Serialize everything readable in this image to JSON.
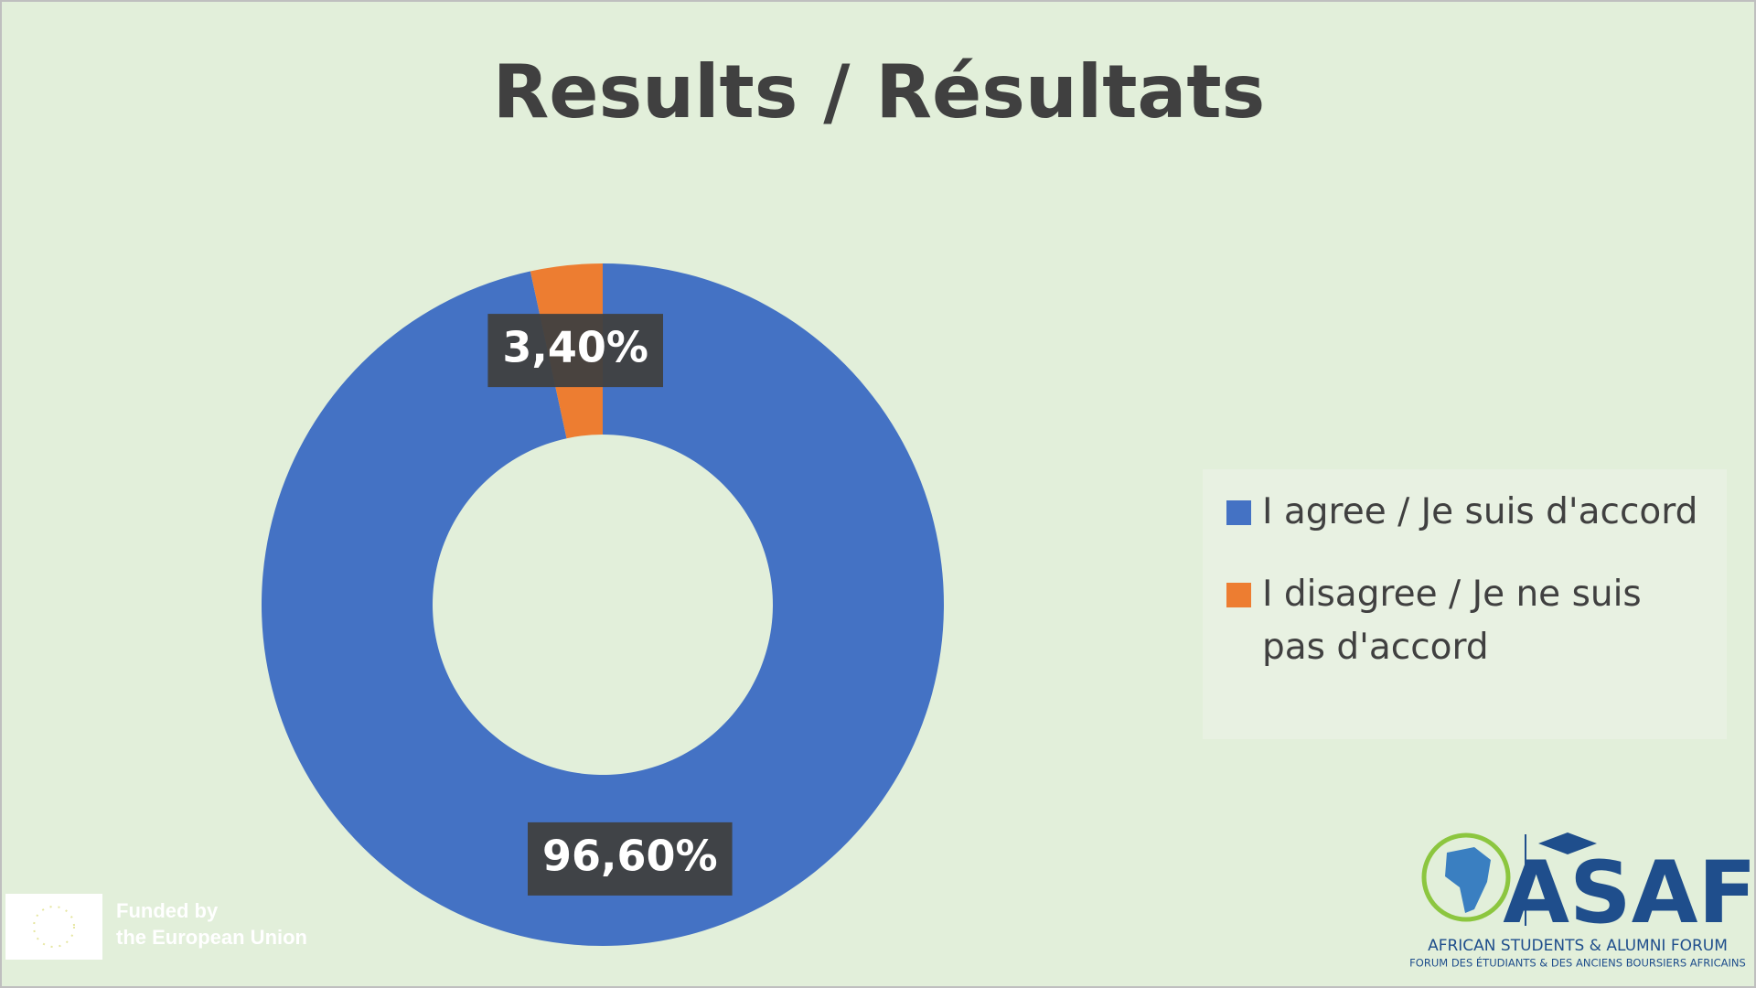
{
  "chart_data": {
    "type": "donut",
    "title": "Results / Résultats",
    "categories": [
      "I agree / Je suis d'accord",
      "I disagree / Je ne suis pas d'accord"
    ],
    "values": [
      96.6,
      3.4
    ],
    "value_labels": [
      "96,60%",
      "3,40%"
    ],
    "colors": [
      "#4472c4",
      "#ed7d31"
    ],
    "legend": "right"
  },
  "logo": {
    "name": "ASAF",
    "line1": "AFRICAN STUDENTS & ALUMNI FORUM",
    "line2": "FORUM DES ÉTUDIANTS & DES ANCIENS BOURSIERS AFRICAINS"
  },
  "funding": {
    "line1": "Funded by",
    "line2": "the European Union"
  }
}
